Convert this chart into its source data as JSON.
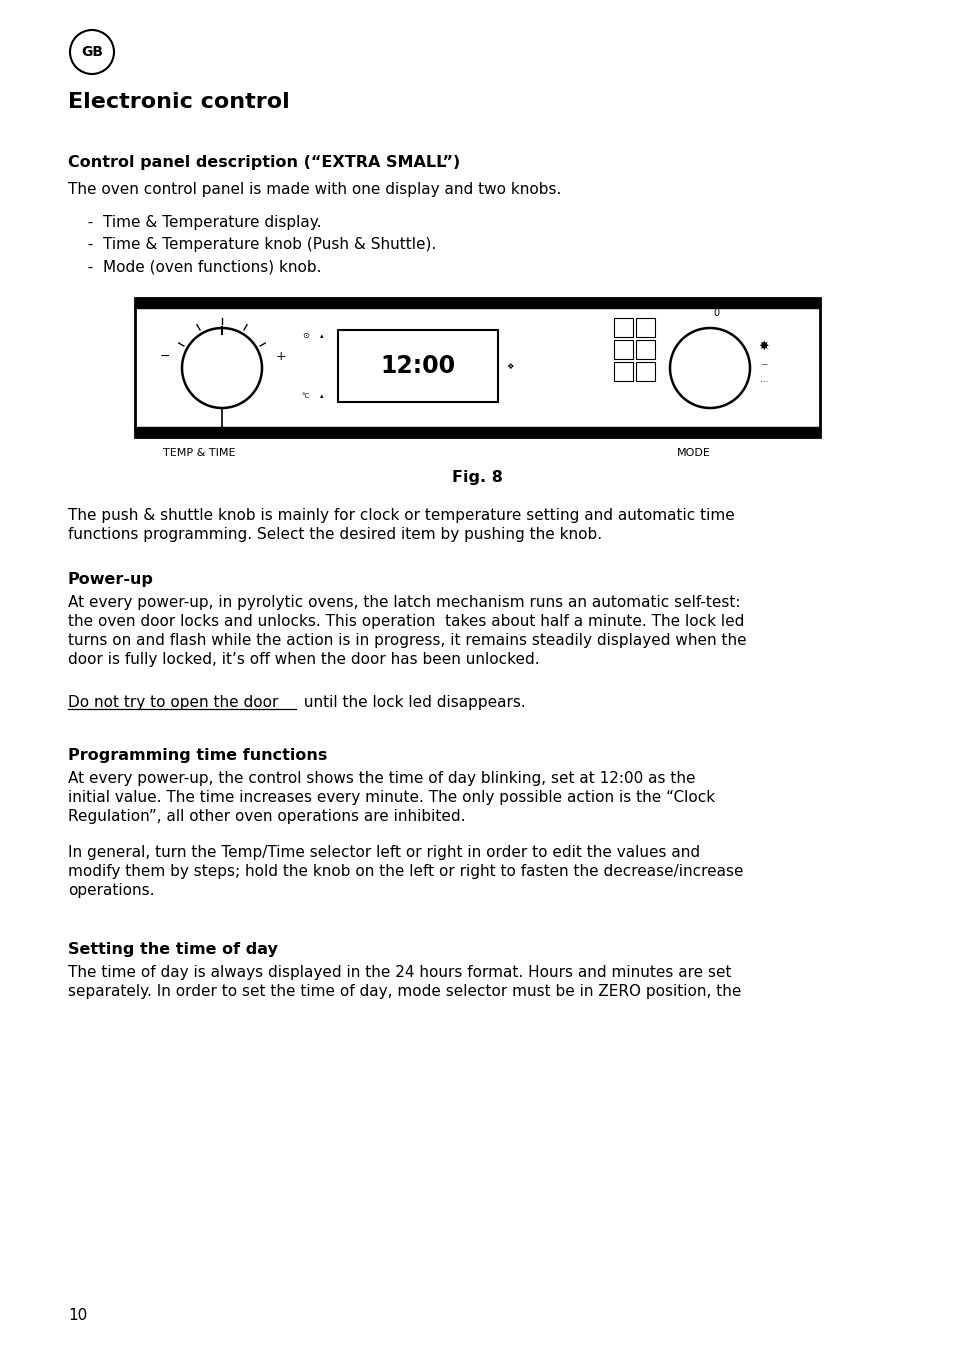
{
  "bg_color": "#ffffff",
  "text_color": "#000000",
  "page_number": "10",
  "gb_circle_text": "GB",
  "title": "Electronic control",
  "section1_heading": "Control panel description (“EXTRA SMALL”)",
  "section1_intro": "The oven control panel is made with one display and two knobs.",
  "bullets": [
    "  -  Time & Temperature display.",
    "  -  Time & Temperature knob (Push & Shuttle).",
    "  -  Mode (oven functions) knob."
  ],
  "fig_caption": "Fig. 8",
  "label_left": "TEMP & TIME",
  "label_right": "MODE",
  "para1_line1": "The push & shuttle knob is mainly for clock or temperature setting and automatic time",
  "para1_line2": "functions programming. Select the desired item by pushing the knob.",
  "section2_heading": "Power-up",
  "section2_line1": "At every power-up, in pyrolytic ovens, the latch mechanism runs an automatic self-test:",
  "section2_line2": "the oven door locks and unlocks. This operation  takes about half a minute. The lock led",
  "section2_line3": "turns on and flash while the action is in progress, it remains steadily displayed when the",
  "section2_line4": "door is fully locked, it’s off when the door has been unlocked.",
  "underline_text": "Do not try to open the door",
  "underline_rest": " until the lock led disappears.",
  "section3_heading": "Programming time functions",
  "section3_line1": "At every power-up, the control shows the time of day blinking, set at 12:00 as the",
  "section3_line2": "initial value. The time increases every minute. The only possible action is the “Clock",
  "section3_line3": "Regulation”, all other oven operations are inhibited.",
  "section3_line4": "In general, turn the Temp/Time selector left or right in order to edit the values and",
  "section3_line5": "modify them by steps; hold the knob on the left or right to fasten the decrease/increase",
  "section3_line6": "operations.",
  "section4_heading": "Setting the time of day",
  "section4_line1": "The time of day is always displayed in the 24 hours format. Hours and minutes are set",
  "section4_line2": "separately. In order to set the time of day, mode selector must be in ZERO position, the",
  "font_family": "DejaVu Sans"
}
